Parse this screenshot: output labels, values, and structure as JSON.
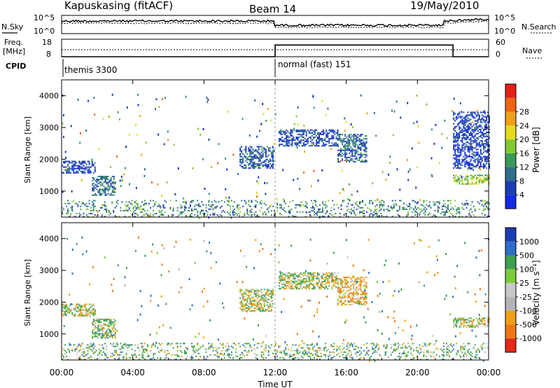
{
  "header": {
    "station": "Kapuskasing (fitACF)",
    "beam": "Beam 14",
    "date": "19/May/2010"
  },
  "noise_panel": {
    "left_label": "N.Sky",
    "right_label": "N.Search",
    "ytick_top": "10^5",
    "ytick_bottom": "10^0"
  },
  "freq_panel": {
    "left_label_1": "Freq.",
    "left_label_2": "[MHz]",
    "right_label": "Nave",
    "left_ticks": [
      "18",
      "8"
    ],
    "right_ticks": [
      "60",
      "0"
    ],
    "freq_level_mhz": 12,
    "nave_segments": [
      {
        "start_h": 0,
        "end_h": 12,
        "nave": 0
      },
      {
        "start_h": 12,
        "end_h": 22,
        "nave": 40
      },
      {
        "start_h": 22,
        "end_h": 24,
        "nave": 0
      }
    ]
  },
  "cpid": {
    "label": "CPID",
    "modes": [
      {
        "text": "themis 3300",
        "start_h": 0
      },
      {
        "text": "normal (fast) 151",
        "start_h": 12
      }
    ]
  },
  "axes": {
    "xlabel": "Time UT",
    "xticks": [
      "00:00",
      "04:00",
      "08:00",
      "12:00",
      "16:00",
      "20:00",
      "00:00"
    ],
    "ylabel": "Slant Range [km]",
    "yticks": [
      "1000",
      "2000",
      "3000",
      "4000"
    ],
    "xlim_h": [
      0,
      24
    ],
    "ylim_km": [
      180,
      4500
    ]
  },
  "power_scale": {
    "label": "Power [dB]",
    "ticks": [
      "4",
      "8",
      "12",
      "16",
      "20",
      "24",
      "28"
    ],
    "colors": [
      "#1428e6",
      "#1e3cb4",
      "#2e6e8c",
      "#3a9a5a",
      "#84c832",
      "#e6dc1e",
      "#f0a014",
      "#f06414",
      "#e61e14"
    ]
  },
  "velocity_scale": {
    "label": "Velocity [m s⁻¹]",
    "ticks": [
      "1000",
      "500",
      "100",
      "25",
      "-25",
      "-100",
      "-500",
      "-1000"
    ],
    "colors": [
      "#1e3cb4",
      "#2d6ec8",
      "#3ca050",
      "#7ccc3c",
      "#c8c8c8",
      "#b4b4b4",
      "#f0a014",
      "#f07814",
      "#e62814"
    ]
  },
  "chart_data": [
    {
      "type": "heatmap",
      "title": "",
      "quantity": "Power [dB]",
      "xlabel": "Time UT",
      "ylabel": "Slant Range [km]",
      "xlim": [
        "00:00",
        "24:00"
      ],
      "ylim": [
        180,
        4500
      ],
      "echo_regions": [
        {
          "start_h": 0.0,
          "end_h": 1.9,
          "range_km": [
            1550,
            1950
          ],
          "power_db": 6
        },
        {
          "start_h": 1.7,
          "end_h": 3.0,
          "range_km": [
            850,
            1450
          ],
          "power_db": 10
        },
        {
          "start_h": 10.0,
          "end_h": 11.9,
          "range_km": [
            1700,
            2400
          ],
          "power_db": 8
        },
        {
          "start_h": 12.2,
          "end_h": 15.5,
          "range_km": [
            2400,
            2900
          ],
          "power_db": 6
        },
        {
          "start_h": 15.5,
          "end_h": 17.1,
          "range_km": [
            1900,
            2800
          ],
          "power_db": 9
        },
        {
          "start_h": 22.0,
          "end_h": 24.0,
          "range_km": [
            1200,
            1500
          ],
          "power_db": 18
        },
        {
          "start_h": 22.0,
          "end_h": 24.0,
          "range_km": [
            1700,
            3500
          ],
          "power_db": 5
        },
        {
          "start_h": 0.0,
          "end_h": 24.0,
          "range_km": [
            180,
            700
          ],
          "power_db": 12
        }
      ]
    },
    {
      "type": "heatmap",
      "title": "",
      "quantity": "Velocity [m s⁻¹]",
      "xlabel": "Time UT",
      "ylabel": "Slant Range [km]",
      "xlim": [
        "00:00",
        "24:00"
      ],
      "ylim": [
        180,
        4500
      ],
      "echo_regions": [
        {
          "start_h": 0.0,
          "end_h": 1.9,
          "range_km": [
            1550,
            1950
          ],
          "velocity_ms": 0
        },
        {
          "start_h": 1.7,
          "end_h": 3.0,
          "range_km": [
            850,
            1450
          ],
          "velocity_ms": 150
        },
        {
          "start_h": 10.0,
          "end_h": 11.9,
          "range_km": [
            1700,
            2400
          ],
          "velocity_ms": 0
        },
        {
          "start_h": 12.2,
          "end_h": 15.5,
          "range_km": [
            2400,
            2900
          ],
          "velocity_ms": 30
        },
        {
          "start_h": 15.5,
          "end_h": 17.1,
          "range_km": [
            1900,
            2800
          ],
          "velocity_ms": -300
        },
        {
          "start_h": 22.0,
          "end_h": 24.0,
          "range_km": [
            1200,
            1500
          ],
          "velocity_ms": 0
        },
        {
          "start_h": 0.0,
          "end_h": 24.0,
          "range_km": [
            180,
            700
          ],
          "velocity_ms": 200
        }
      ]
    }
  ]
}
